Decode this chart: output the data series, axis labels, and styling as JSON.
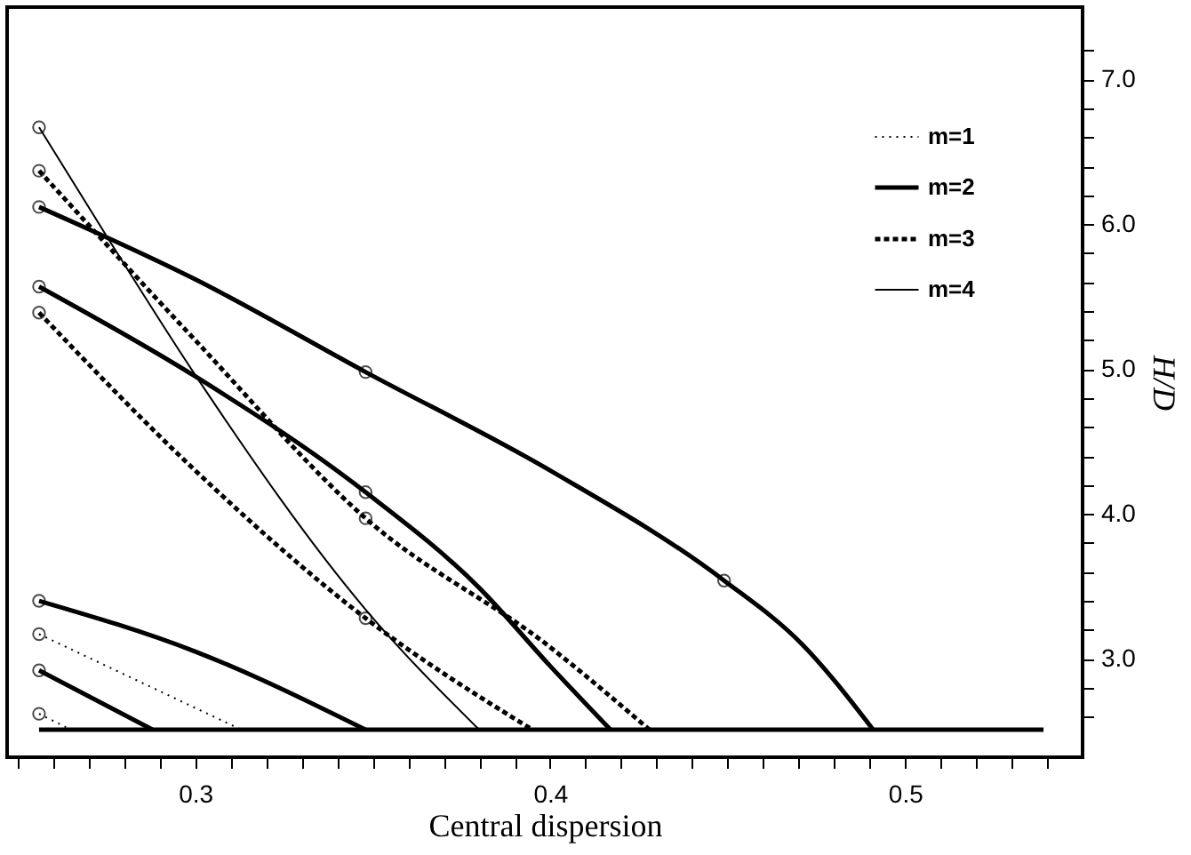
{
  "chart_data": {
    "type": "line",
    "xlabel": "Central dispersion",
    "ylabel": "H/D",
    "xlim": [
      0.247,
      0.55
    ],
    "ylim": [
      2.32,
      7.5
    ],
    "xticks": [
      {
        "value": 0.25,
        "label": null
      },
      {
        "value": 0.26,
        "label": null
      },
      {
        "value": 0.27,
        "label": null
      },
      {
        "value": 0.28,
        "label": null
      },
      {
        "value": 0.29,
        "label": null
      },
      0.3,
      {
        "value": 0.31,
        "label": null
      },
      {
        "value": 0.32,
        "label": null
      },
      {
        "value": 0.33,
        "label": null
      },
      {
        "value": 0.34,
        "label": null
      },
      {
        "value": 0.35,
        "label": null
      },
      {
        "value": 0.36,
        "label": null
      },
      {
        "value": 0.37,
        "label": null
      },
      {
        "value": 0.38,
        "label": null
      },
      {
        "value": 0.39,
        "label": null
      },
      0.4,
      {
        "value": 0.41,
        "label": null
      },
      {
        "value": 0.42,
        "label": null
      },
      {
        "value": 0.43,
        "label": null
      },
      {
        "value": 0.44,
        "label": null
      },
      {
        "value": 0.45,
        "label": null
      },
      {
        "value": 0.46,
        "label": null
      },
      {
        "value": 0.47,
        "label": null
      },
      {
        "value": 0.48,
        "label": null
      },
      {
        "value": 0.49,
        "label": null
      },
      0.5,
      {
        "value": 0.51,
        "label": null
      },
      {
        "value": 0.52,
        "label": null
      },
      {
        "value": 0.53,
        "label": null
      },
      {
        "value": 0.54,
        "label": null
      }
    ],
    "yticks": [
      {
        "value": 2.6,
        "label": null
      },
      {
        "value": 2.8,
        "label": null
      },
      {
        "value": 3,
        "label": "3.0"
      },
      {
        "value": 3.2,
        "label": null
      },
      {
        "value": 3.4,
        "label": null
      },
      {
        "value": 3.6,
        "label": null
      },
      {
        "value": 3.8,
        "label": null
      },
      {
        "value": 4,
        "label": "4.0"
      },
      {
        "value": 4.2,
        "label": null
      },
      {
        "value": 4.4,
        "label": null
      },
      {
        "value": 4.6,
        "label": null
      },
      {
        "value": 4.8,
        "label": null
      },
      {
        "value": 5,
        "label": "5.0"
      },
      {
        "value": 5.2,
        "label": null
      },
      {
        "value": 5.4,
        "label": null
      },
      {
        "value": 5.6,
        "label": null
      },
      {
        "value": 5.8,
        "label": null
      },
      {
        "value": 6,
        "label": "6.0"
      },
      {
        "value": 6.2,
        "label": null
      },
      {
        "value": 6.4,
        "label": null
      },
      {
        "value": 6.6,
        "label": null
      },
      {
        "value": 6.8,
        "label": null
      },
      {
        "value": 7,
        "label": "7.0"
      },
      {
        "value": 7.2,
        "label": null
      }
    ],
    "grid": false,
    "legend": "top right",
    "series": [
      {
        "name": "m=1",
        "type": "line",
        "line_style": "dotted",
        "color": "#000000",
        "x": [
          0.256,
          0.313
        ],
        "values": [
          3.17,
          2.51
        ]
      },
      {
        "name": "m=2",
        "type": "line",
        "line_style": "solid",
        "color": "#000000",
        "x": [
          0.256,
          0.3,
          0.348,
          0.4,
          0.449,
          0.471,
          0.491
        ],
        "values": [
          6.12,
          5.62,
          4.98,
          4.3,
          3.54,
          3.1,
          2.51
        ]
      },
      {
        "name": "m=3",
        "type": "line",
        "line_style": "dashed",
        "color": "#000000",
        "x": [
          0.256,
          0.3,
          0.348,
          0.4,
          0.428
        ],
        "values": [
          6.37,
          5.2,
          3.97,
          3.08,
          2.51
        ]
      },
      {
        "name": "m=4",
        "type": "line",
        "line_style": "solid",
        "color": "#000000",
        "x": [
          0.256,
          0.275,
          0.3,
          0.348,
          0.38
        ],
        "values": [
          6.67,
          5.92,
          4.96,
          3.34,
          2.51
        ]
      },
      {
        "type": "line",
        "line_style": "dotted",
        "color": "#000000",
        "x": [
          0.256,
          0.265
        ],
        "values": [
          2.62,
          2.51
        ]
      },
      {
        "type": "line",
        "line_style": "solid",
        "color": "#000000",
        "x": [
          0.256,
          0.3,
          0.348,
          0.38,
          0.4,
          0.417
        ],
        "values": [
          5.57,
          4.95,
          4.15,
          3.49,
          2.95,
          2.51
        ]
      },
      {
        "type": "line",
        "line_style": "solid",
        "color": "#000000",
        "x": [
          0.256,
          0.3,
          0.348
        ],
        "values": [
          3.4,
          3.05,
          2.51
        ]
      },
      {
        "type": "line",
        "line_style": "solid",
        "color": "#000000",
        "x": [
          0.256,
          0.539
        ],
        "values": [
          2.51,
          2.51
        ]
      },
      {
        "type": "line",
        "line_style": "dashed",
        "color": "#000000",
        "x": [
          0.256,
          0.3,
          0.348,
          0.395
        ],
        "values": [
          5.39,
          4.3,
          3.28,
          2.51
        ]
      },
      {
        "type": "line",
        "line_style": "solid",
        "color": "#000000",
        "x": [
          0.256,
          0.288
        ],
        "values": [
          2.92,
          2.51
        ]
      },
      {
        "type": "scatter",
        "marker": "circle",
        "color": "#000000",
        "x": [
          0.256,
          0.256,
          0.256,
          0.256,
          0.256,
          0.256,
          0.256,
          0.256,
          0.256,
          0.348,
          0.348,
          0.348,
          0.348,
          0.449
        ],
        "values": [
          6.67,
          6.37,
          6.12,
          5.57,
          5.39,
          3.4,
          3.17,
          2.92,
          2.62,
          4.98,
          4.15,
          3.97,
          3.28,
          3.54
        ]
      }
    ]
  }
}
